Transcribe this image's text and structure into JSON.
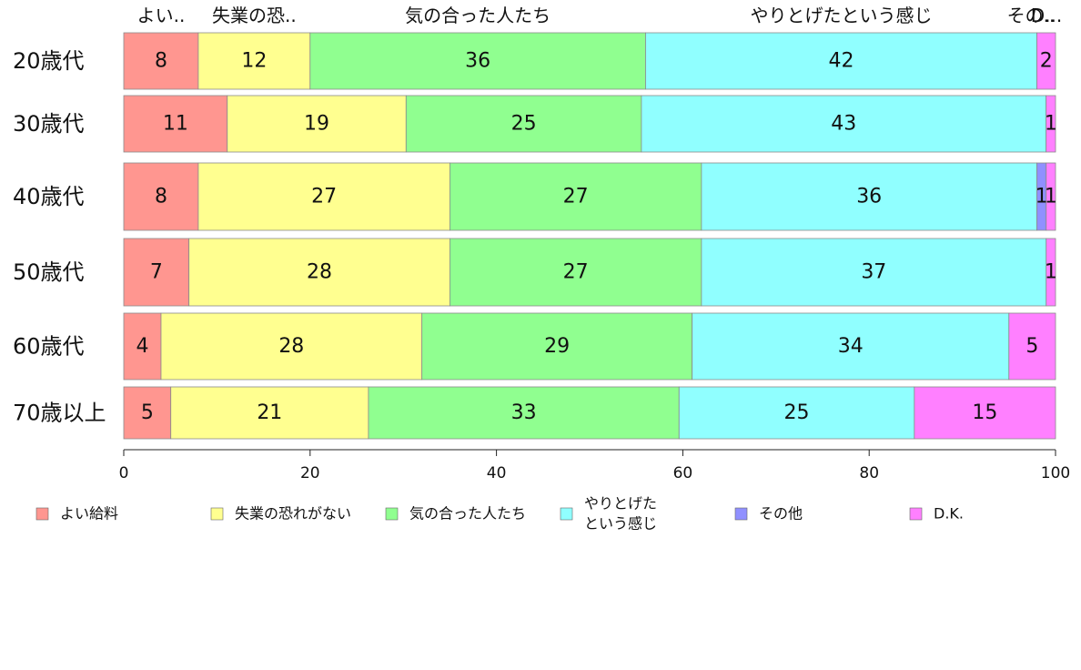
{
  "chart_data": {
    "type": "bar",
    "orientation": "horizontal",
    "stacked": true,
    "categories": [
      "20歳代",
      "30歳代",
      "40歳代",
      "50歳代",
      "60歳代",
      "70歳以上"
    ],
    "series": [
      {
        "name": "よい給料",
        "color": "#ff9690",
        "values": [
          8,
          11,
          8,
          7,
          4,
          5
        ]
      },
      {
        "name": "失業の恐れがない",
        "color": "#ffff90",
        "values": [
          12,
          19,
          27,
          28,
          28,
          21
        ]
      },
      {
        "name": "気の合った人たち",
        "color": "#90ff90",
        "values": [
          36,
          25,
          27,
          27,
          29,
          33
        ]
      },
      {
        "name": "やりとげたという感じ",
        "color": "#90ffff",
        "values": [
          42,
          43,
          36,
          37,
          34,
          25
        ]
      },
      {
        "name": "その他",
        "color": "#9090ff",
        "values": [
          0,
          0,
          1,
          0,
          0,
          0
        ]
      },
      {
        "name": "D.K.",
        "color": "#ff80ff",
        "values": [
          2,
          1,
          1,
          1,
          5,
          15
        ]
      }
    ],
    "top_labels": [
      "よい..",
      "失業の恐..",
      "気の合った人たち",
      "やりとげたという感じ",
      "その..",
      "D..."
    ],
    "xlim": [
      0,
      100
    ],
    "xticks": [
      0,
      20,
      40,
      60,
      80,
      100
    ],
    "legend": {
      "position": "bottom",
      "labels": [
        [
          "よい給料"
        ],
        [
          "失業の恐れがない"
        ],
        [
          "気の合った人たち"
        ],
        [
          "やりとげた",
          "という感じ"
        ],
        [
          "その他"
        ],
        [
          "D.K."
        ]
      ]
    },
    "grid": false
  }
}
